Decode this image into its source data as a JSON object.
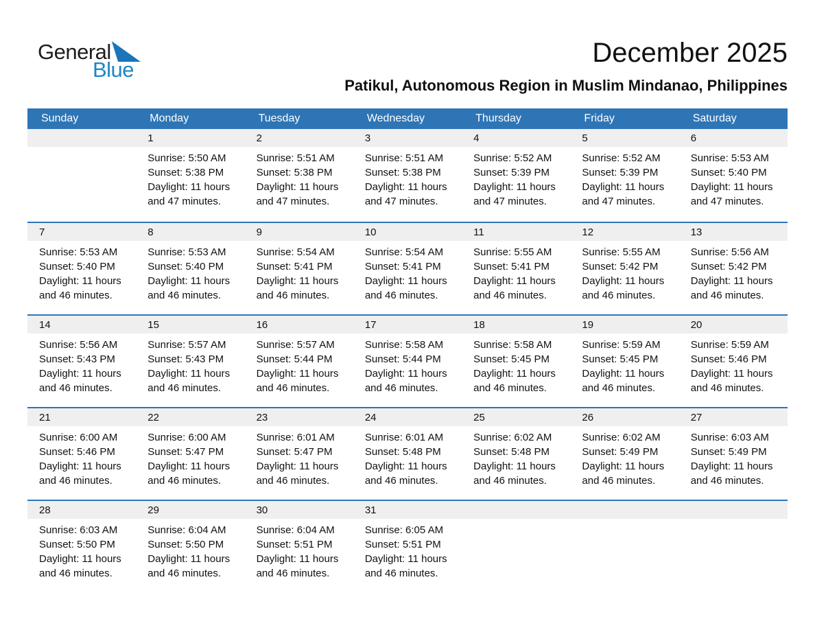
{
  "logo": {
    "text_top": "General",
    "text_bottom": "Blue"
  },
  "header": {
    "title": "December 2025",
    "subtitle": "Patikul, Autonomous Region in Muslim Mindanao, Philippines"
  },
  "colors": {
    "calendar_blue": "#2e75b6",
    "date_strip_gray": "#efefef",
    "logo_blue": "#1d86c8",
    "logo_triangle_blue": "#1a75bb",
    "header_text": "#ffffff"
  },
  "calendar": {
    "day_headers": [
      "Sunday",
      "Monday",
      "Tuesday",
      "Wednesday",
      "Thursday",
      "Friday",
      "Saturday"
    ],
    "weeks": [
      {
        "days": [
          {
            "date": "",
            "sunrise": "",
            "sunset": "",
            "daylight": ""
          },
          {
            "date": "1",
            "sunrise": "Sunrise: 5:50 AM",
            "sunset": "Sunset: 5:38 PM",
            "daylight": "Daylight: 11 hours and 47 minutes."
          },
          {
            "date": "2",
            "sunrise": "Sunrise: 5:51 AM",
            "sunset": "Sunset: 5:38 PM",
            "daylight": "Daylight: 11 hours and 47 minutes."
          },
          {
            "date": "3",
            "sunrise": "Sunrise: 5:51 AM",
            "sunset": "Sunset: 5:38 PM",
            "daylight": "Daylight: 11 hours and 47 minutes."
          },
          {
            "date": "4",
            "sunrise": "Sunrise: 5:52 AM",
            "sunset": "Sunset: 5:39 PM",
            "daylight": "Daylight: 11 hours and 47 minutes."
          },
          {
            "date": "5",
            "sunrise": "Sunrise: 5:52 AM",
            "sunset": "Sunset: 5:39 PM",
            "daylight": "Daylight: 11 hours and 47 minutes."
          },
          {
            "date": "6",
            "sunrise": "Sunrise: 5:53 AM",
            "sunset": "Sunset: 5:40 PM",
            "daylight": "Daylight: 11 hours and 47 minutes."
          }
        ]
      },
      {
        "days": [
          {
            "date": "7",
            "sunrise": "Sunrise: 5:53 AM",
            "sunset": "Sunset: 5:40 PM",
            "daylight": "Daylight: 11 hours and 46 minutes."
          },
          {
            "date": "8",
            "sunrise": "Sunrise: 5:53 AM",
            "sunset": "Sunset: 5:40 PM",
            "daylight": "Daylight: 11 hours and 46 minutes."
          },
          {
            "date": "9",
            "sunrise": "Sunrise: 5:54 AM",
            "sunset": "Sunset: 5:41 PM",
            "daylight": "Daylight: 11 hours and 46 minutes."
          },
          {
            "date": "10",
            "sunrise": "Sunrise: 5:54 AM",
            "sunset": "Sunset: 5:41 PM",
            "daylight": "Daylight: 11 hours and 46 minutes."
          },
          {
            "date": "11",
            "sunrise": "Sunrise: 5:55 AM",
            "sunset": "Sunset: 5:41 PM",
            "daylight": "Daylight: 11 hours and 46 minutes."
          },
          {
            "date": "12",
            "sunrise": "Sunrise: 5:55 AM",
            "sunset": "Sunset: 5:42 PM",
            "daylight": "Daylight: 11 hours and 46 minutes."
          },
          {
            "date": "13",
            "sunrise": "Sunrise: 5:56 AM",
            "sunset": "Sunset: 5:42 PM",
            "daylight": "Daylight: 11 hours and 46 minutes."
          }
        ]
      },
      {
        "days": [
          {
            "date": "14",
            "sunrise": "Sunrise: 5:56 AM",
            "sunset": "Sunset: 5:43 PM",
            "daylight": "Daylight: 11 hours and 46 minutes."
          },
          {
            "date": "15",
            "sunrise": "Sunrise: 5:57 AM",
            "sunset": "Sunset: 5:43 PM",
            "daylight": "Daylight: 11 hours and 46 minutes."
          },
          {
            "date": "16",
            "sunrise": "Sunrise: 5:57 AM",
            "sunset": "Sunset: 5:44 PM",
            "daylight": "Daylight: 11 hours and 46 minutes."
          },
          {
            "date": "17",
            "sunrise": "Sunrise: 5:58 AM",
            "sunset": "Sunset: 5:44 PM",
            "daylight": "Daylight: 11 hours and 46 minutes."
          },
          {
            "date": "18",
            "sunrise": "Sunrise: 5:58 AM",
            "sunset": "Sunset: 5:45 PM",
            "daylight": "Daylight: 11 hours and 46 minutes."
          },
          {
            "date": "19",
            "sunrise": "Sunrise: 5:59 AM",
            "sunset": "Sunset: 5:45 PM",
            "daylight": "Daylight: 11 hours and 46 minutes."
          },
          {
            "date": "20",
            "sunrise": "Sunrise: 5:59 AM",
            "sunset": "Sunset: 5:46 PM",
            "daylight": "Daylight: 11 hours and 46 minutes."
          }
        ]
      },
      {
        "days": [
          {
            "date": "21",
            "sunrise": "Sunrise: 6:00 AM",
            "sunset": "Sunset: 5:46 PM",
            "daylight": "Daylight: 11 hours and 46 minutes."
          },
          {
            "date": "22",
            "sunrise": "Sunrise: 6:00 AM",
            "sunset": "Sunset: 5:47 PM",
            "daylight": "Daylight: 11 hours and 46 minutes."
          },
          {
            "date": "23",
            "sunrise": "Sunrise: 6:01 AM",
            "sunset": "Sunset: 5:47 PM",
            "daylight": "Daylight: 11 hours and 46 minutes."
          },
          {
            "date": "24",
            "sunrise": "Sunrise: 6:01 AM",
            "sunset": "Sunset: 5:48 PM",
            "daylight": "Daylight: 11 hours and 46 minutes."
          },
          {
            "date": "25",
            "sunrise": "Sunrise: 6:02 AM",
            "sunset": "Sunset: 5:48 PM",
            "daylight": "Daylight: 11 hours and 46 minutes."
          },
          {
            "date": "26",
            "sunrise": "Sunrise: 6:02 AM",
            "sunset": "Sunset: 5:49 PM",
            "daylight": "Daylight: 11 hours and 46 minutes."
          },
          {
            "date": "27",
            "sunrise": "Sunrise: 6:03 AM",
            "sunset": "Sunset: 5:49 PM",
            "daylight": "Daylight: 11 hours and 46 minutes."
          }
        ]
      },
      {
        "days": [
          {
            "date": "28",
            "sunrise": "Sunrise: 6:03 AM",
            "sunset": "Sunset: 5:50 PM",
            "daylight": "Daylight: 11 hours and 46 minutes."
          },
          {
            "date": "29",
            "sunrise": "Sunrise: 6:04 AM",
            "sunset": "Sunset: 5:50 PM",
            "daylight": "Daylight: 11 hours and 46 minutes."
          },
          {
            "date": "30",
            "sunrise": "Sunrise: 6:04 AM",
            "sunset": "Sunset: 5:51 PM",
            "daylight": "Daylight: 11 hours and 46 minutes."
          },
          {
            "date": "31",
            "sunrise": "Sunrise: 6:05 AM",
            "sunset": "Sunset: 5:51 PM",
            "daylight": "Daylight: 11 hours and 46 minutes."
          },
          {
            "date": "",
            "sunrise": "",
            "sunset": "",
            "daylight": ""
          },
          {
            "date": "",
            "sunrise": "",
            "sunset": "",
            "daylight": ""
          },
          {
            "date": "",
            "sunrise": "",
            "sunset": "",
            "daylight": ""
          }
        ]
      }
    ]
  }
}
